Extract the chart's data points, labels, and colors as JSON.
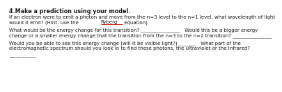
{
  "title": "4.Make a prediction using your model.",
  "paragraphs": [
    [
      "If an electron were to emit a photon and move from the n=3 level to the n=1 level, what wavelength of light",
      "would it emit? (Hint: use the Ryberg equation)"
    ],
    [
      "What would be the energy change for this transition? ________________   Would this be a bigger energy",
      "change or a smaller energy change that the transition from the n=3 to the n=2 transition? ________________"
    ],
    [
      "Would you be able to see this energy change (will it be visible light?) _______   What part of the",
      "electromagnetic spectrum should you look in to find these photons, the ultraviolet or the infrared?"
    ],
    [
      "___________"
    ]
  ],
  "bg_color": "#ffffff",
  "text_color": "#1a1a1a",
  "title_fontsize": 5.8,
  "body_fontsize": 5.0,
  "ryberg_underline_color": "#cc2200"
}
